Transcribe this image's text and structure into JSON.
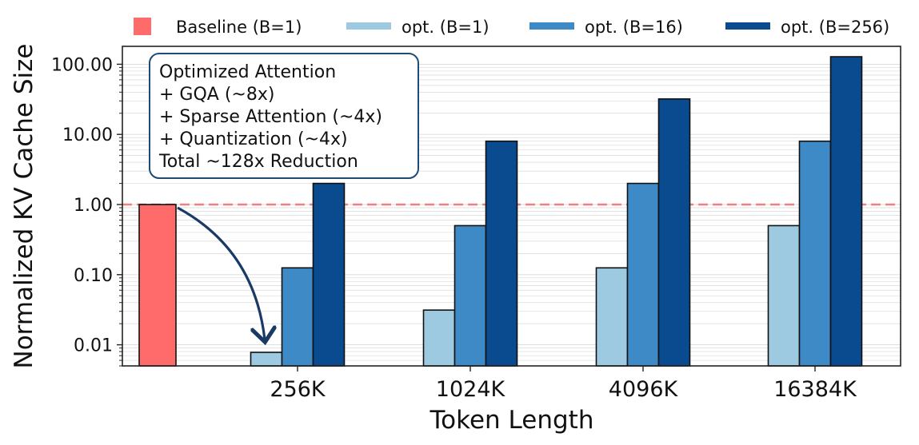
{
  "chart_data": {
    "type": "bar",
    "title": "",
    "xlabel": "Token Length",
    "ylabel": "Normalized KV Cache Size",
    "yscale": "log",
    "ylim": [
      0.005,
      180
    ],
    "yticks": [
      "0.01",
      "0.10",
      "1.00",
      "10.00",
      "100.00"
    ],
    "categories": [
      "256K",
      "1024K",
      "4096K",
      "16384K"
    ],
    "baseline": {
      "name": "Baseline (B=1)",
      "value": 1.0,
      "color": "#ff6b6b"
    },
    "reference_line": {
      "value": 1.0,
      "color": "#f08080",
      "style": "dashed"
    },
    "series": [
      {
        "name": "opt. (B=1)",
        "color": "#9ecae1",
        "values": [
          0.0078,
          0.03125,
          0.125,
          0.5
        ]
      },
      {
        "name": "opt. (B=16)",
        "color": "#3e8ac6",
        "values": [
          0.125,
          0.5,
          2,
          8
        ]
      },
      {
        "name": "opt. (B=256)",
        "color": "#0a4a8f",
        "values": [
          2,
          8,
          32,
          128
        ]
      }
    ],
    "legend_position": "top",
    "grid": "y-minor",
    "annotation": {
      "lines": [
        "Optimized Attention",
        "+ GQA (~8x)",
        "+ Sparse Attention (~4x)",
        "+ Quantization (~4x)",
        "Total ~128x Reduction"
      ],
      "arrow_color": "#1a3a66"
    }
  }
}
